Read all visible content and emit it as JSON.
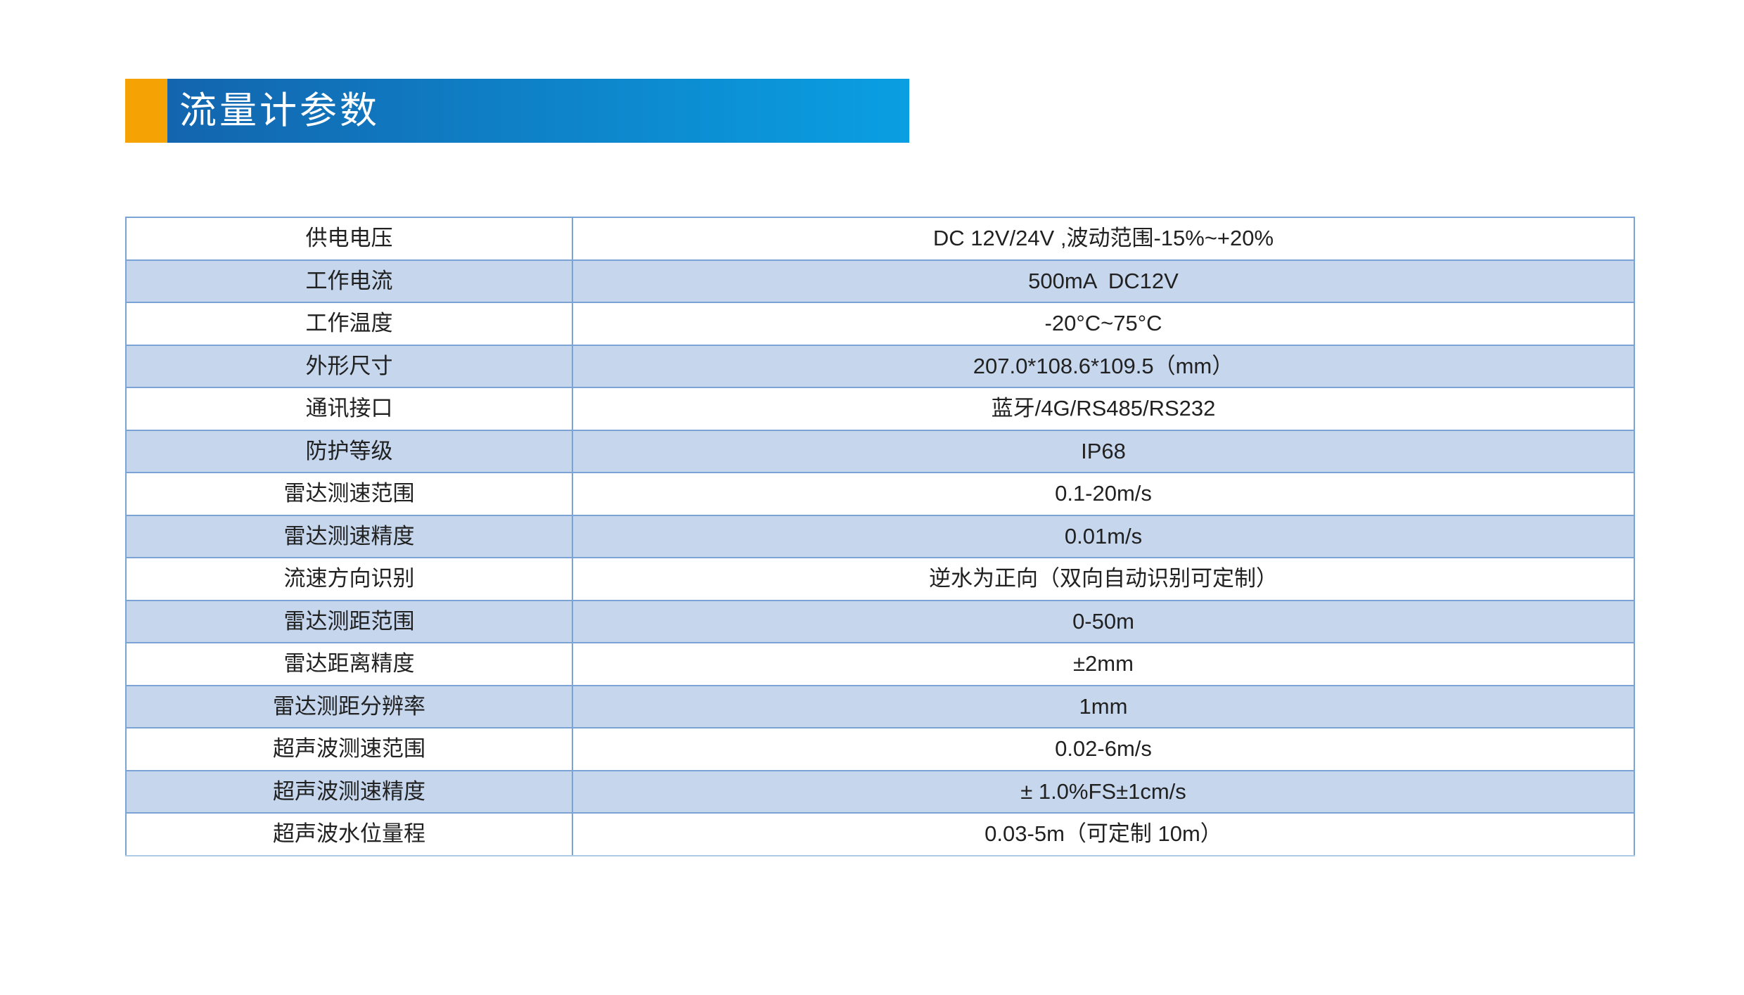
{
  "banner": {
    "title": "流量计参数",
    "accent_color": "#F5A205",
    "gradient_start": "#1365AE",
    "gradient_end": "#0A9FE2",
    "text_color": "#FFFFFF"
  },
  "table": {
    "border_color": "#7CA3D6",
    "alt_row_color": "#C5D6ED",
    "text_color": "#212121",
    "rows": [
      {
        "label": "供电电压",
        "value": "DC 12V/24V ,波动范围-15%~+20%"
      },
      {
        "label": "工作电流",
        "value": "500mA  DC12V"
      },
      {
        "label": "工作温度",
        "value": "-20°C~75°C"
      },
      {
        "label": "外形尺寸",
        "value": "207.0*108.6*109.5（mm）"
      },
      {
        "label": "通讯接口",
        "value": "蓝牙/4G/RS485/RS232"
      },
      {
        "label": "防护等级",
        "value": "IP68"
      },
      {
        "label": "雷达测速范围",
        "value": "0.1-20m/s"
      },
      {
        "label": "雷达测速精度",
        "value": "0.01m/s"
      },
      {
        "label": "流速方向识别",
        "value": "逆水为正向（双向自动识别可定制）"
      },
      {
        "label": "雷达测距范围",
        "value": "0-50m"
      },
      {
        "label": "雷达距离精度",
        "value": "±2mm"
      },
      {
        "label": "雷达测距分辨率",
        "value": "1mm"
      },
      {
        "label": "超声波测速范围",
        "value": "0.02-6m/s"
      },
      {
        "label": "超声波测速精度",
        "value": "± 1.0%FS±1cm/s"
      },
      {
        "label": "超声波水位量程",
        "value": "0.03-5m（可定制 10m）"
      }
    ]
  }
}
